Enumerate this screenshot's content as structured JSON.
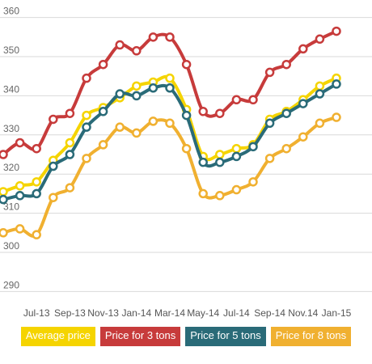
{
  "chart_data": {
    "type": "line",
    "title": "",
    "xlabel": "",
    "ylabel": "",
    "ylim": [
      288,
      362
    ],
    "yticks": [
      290,
      300,
      310,
      320,
      330,
      340,
      350,
      360
    ],
    "grid": true,
    "legend_position": "bottom",
    "x": [
      "May-13",
      "Jun-13",
      "Jul-13",
      "Aug-13",
      "Sep-13",
      "Oct-13",
      "Nov-13",
      "Dec-13",
      "Jan-14",
      "Feb-14",
      "Mar-14",
      "Apr-14",
      "May-14",
      "Jun-14",
      "Jul-14",
      "Aug-14",
      "Sep-14",
      "Oct-14",
      "Nov.14",
      "Dec-14",
      "Jan-15"
    ],
    "xtick_labels": [
      "Jul-13",
      "Sep-13",
      "Nov-13",
      "Jan-14",
      "Mar-14",
      "May-14",
      "Jul-14",
      "Sep-14",
      "Nov.14",
      "Jan-15"
    ],
    "xtick_indices": [
      2,
      4,
      6,
      8,
      10,
      12,
      14,
      16,
      18,
      20
    ],
    "series": [
      {
        "name": "Average price",
        "color": "#f5d400",
        "values": [
          315.5,
          317.0,
          318.0,
          323.5,
          328.0,
          335.0,
          337.0,
          339.5,
          342.5,
          343.5,
          344.5,
          336.5,
          324.5,
          325.0,
          326.5,
          327.5,
          334.0,
          336.0,
          339.0,
          342.5,
          344.5
        ]
      },
      {
        "name": "Price for 3 tons",
        "color": "#c73b3b",
        "values": [
          325.0,
          328.0,
          326.5,
          334.0,
          335.5,
          344.5,
          348.0,
          353.0,
          351.5,
          355.0,
          355.0,
          348.0,
          336.0,
          335.5,
          339.0,
          339.0,
          346.0,
          348.0,
          352.0,
          354.5,
          356.5
        ]
      },
      {
        "name": "Price for 5 tons",
        "color": "#2a6b78",
        "values": [
          313.5,
          314.5,
          315.0,
          322.0,
          325.0,
          332.0,
          336.0,
          340.5,
          340.0,
          342.0,
          342.0,
          335.0,
          323.0,
          323.0,
          324.5,
          327.0,
          333.0,
          335.5,
          338.0,
          340.5,
          343.0
        ]
      },
      {
        "name": "Price for 8 tons",
        "color": "#f0b030",
        "values": [
          305.0,
          306.0,
          304.5,
          314.0,
          316.5,
          324.0,
          327.5,
          332.0,
          330.5,
          333.5,
          333.0,
          326.5,
          315.0,
          314.5,
          316.0,
          318.0,
          324.0,
          326.5,
          329.5,
          333.0,
          334.5
        ]
      }
    ]
  }
}
